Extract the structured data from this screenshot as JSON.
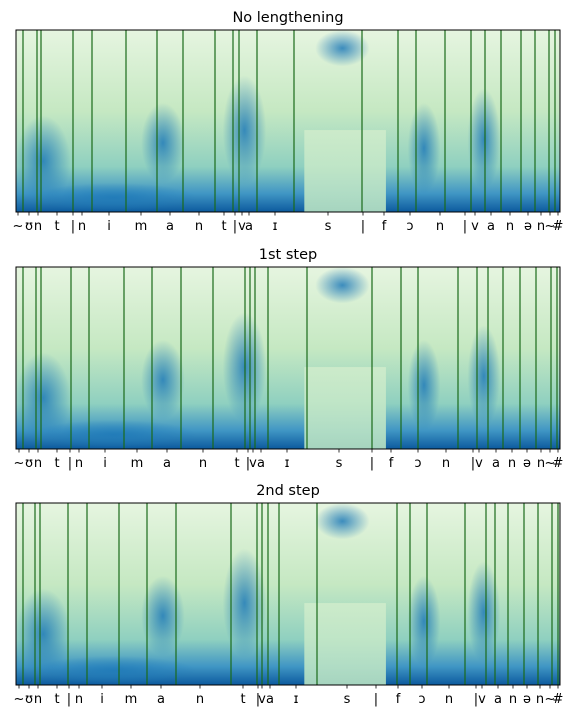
{
  "chart_data": [
    {
      "type": "spectrogram",
      "title": "No lengthening",
      "xlim": [
        0,
        544
      ],
      "boundaries": [
        7,
        21,
        25,
        57,
        76,
        110,
        141,
        167,
        199,
        217,
        223,
        241,
        278,
        346,
        382,
        400,
        429,
        455,
        469,
        485,
        505,
        519,
        533,
        539
      ],
      "xticks": [
        {
          "value": 2,
          "label": "~"
        },
        {
          "value": 13,
          "label": "ʊ"
        },
        {
          "value": 22,
          "label": "n"
        },
        {
          "value": 41,
          "label": "t"
        },
        {
          "value": 57,
          "label": "|"
        },
        {
          "value": 66,
          "label": "n"
        },
        {
          "value": 93,
          "label": "i"
        },
        {
          "value": 125,
          "label": "m"
        },
        {
          "value": 154,
          "label": "a"
        },
        {
          "value": 183,
          "label": "n"
        },
        {
          "value": 208,
          "label": "t"
        },
        {
          "value": 219,
          "label": "|"
        },
        {
          "value": 226,
          "label": "v"
        },
        {
          "value": 233,
          "label": "a"
        },
        {
          "value": 259,
          "label": "ɪ"
        },
        {
          "value": 312,
          "label": "s"
        },
        {
          "value": 347,
          "label": "|"
        },
        {
          "value": 368,
          "label": "f"
        },
        {
          "value": 394,
          "label": "ɔ"
        },
        {
          "value": 424,
          "label": "n"
        },
        {
          "value": 449,
          "label": "|"
        },
        {
          "value": 459,
          "label": "v"
        },
        {
          "value": 475,
          "label": "a"
        },
        {
          "value": 494,
          "label": "n"
        },
        {
          "value": 512,
          "label": "ə"
        },
        {
          "value": 525,
          "label": "n"
        },
        {
          "value": 534,
          "label": "~"
        },
        {
          "value": 542,
          "label": "#"
        }
      ]
    },
    {
      "type": "spectrogram",
      "title": "1st step",
      "xlim": [
        0,
        544
      ],
      "boundaries": [
        7,
        20,
        25,
        55,
        73,
        108,
        136,
        165,
        197,
        229,
        234,
        239,
        252,
        291,
        356,
        385,
        402,
        442,
        461,
        472,
        487,
        504,
        520,
        535,
        541
      ],
      "xticks": [
        {
          "value": 3,
          "label": "~"
        },
        {
          "value": 13,
          "label": "ʊ"
        },
        {
          "value": 22,
          "label": "n"
        },
        {
          "value": 41,
          "label": "t"
        },
        {
          "value": 54,
          "label": "|"
        },
        {
          "value": 63,
          "label": "n"
        },
        {
          "value": 89,
          "label": "i"
        },
        {
          "value": 121,
          "label": "m"
        },
        {
          "value": 151,
          "label": "a"
        },
        {
          "value": 187,
          "label": "n"
        },
        {
          "value": 221,
          "label": "t"
        },
        {
          "value": 232,
          "label": "|"
        },
        {
          "value": 237,
          "label": "v"
        },
        {
          "value": 245,
          "label": "a"
        },
        {
          "value": 271,
          "label": "ɪ"
        },
        {
          "value": 323,
          "label": "s"
        },
        {
          "value": 356,
          "label": "|"
        },
        {
          "value": 375,
          "label": "f"
        },
        {
          "value": 402,
          "label": "ɔ"
        },
        {
          "value": 430,
          "label": "n"
        },
        {
          "value": 457,
          "label": "|"
        },
        {
          "value": 463,
          "label": "v"
        },
        {
          "value": 480,
          "label": "a"
        },
        {
          "value": 496,
          "label": "n"
        },
        {
          "value": 511,
          "label": "ə"
        },
        {
          "value": 525,
          "label": "n"
        },
        {
          "value": 534,
          "label": "~"
        },
        {
          "value": 542,
          "label": "#"
        }
      ]
    },
    {
      "type": "spectrogram",
      "title": "2nd step",
      "xlim": [
        0,
        544
      ],
      "boundaries": [
        7,
        19,
        24,
        52,
        71,
        103,
        131,
        160,
        215,
        241,
        246,
        252,
        263,
        301,
        381,
        394,
        411,
        449,
        470,
        479,
        492,
        508,
        522,
        536,
        542
      ],
      "xticks": [
        {
          "value": 3,
          "label": "~"
        },
        {
          "value": 13,
          "label": "ʊ"
        },
        {
          "value": 22,
          "label": "n"
        },
        {
          "value": 41,
          "label": "t"
        },
        {
          "value": 53,
          "label": "|"
        },
        {
          "value": 63,
          "label": "n"
        },
        {
          "value": 86,
          "label": "i"
        },
        {
          "value": 115,
          "label": "m"
        },
        {
          "value": 145,
          "label": "a"
        },
        {
          "value": 184,
          "label": "n"
        },
        {
          "value": 227,
          "label": "t"
        },
        {
          "value": 242,
          "label": "|"
        },
        {
          "value": 246,
          "label": "v"
        },
        {
          "value": 254,
          "label": "a"
        },
        {
          "value": 280,
          "label": "ɪ"
        },
        {
          "value": 331,
          "label": "s"
        },
        {
          "value": 360,
          "label": "|"
        },
        {
          "value": 382,
          "label": "f"
        },
        {
          "value": 406,
          "label": "ɔ"
        },
        {
          "value": 433,
          "label": "n"
        },
        {
          "value": 460,
          "label": "|"
        },
        {
          "value": 466,
          "label": "v"
        },
        {
          "value": 482,
          "label": "a"
        },
        {
          "value": 497,
          "label": "n"
        },
        {
          "value": 511,
          "label": "ə"
        },
        {
          "value": 524,
          "label": "n"
        },
        {
          "value": 534,
          "label": "~"
        },
        {
          "value": 542,
          "label": "#"
        }
      ]
    }
  ]
}
